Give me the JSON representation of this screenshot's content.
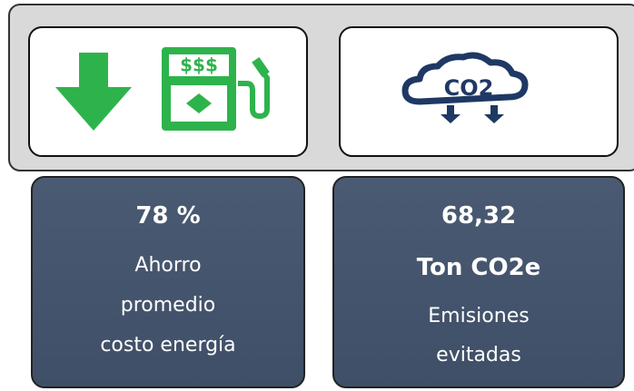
{
  "cards": [
    {
      "icon_text": "$$$",
      "value": "78 %",
      "lines": [
        "Ahorro",
        "promedio",
        "costo energía"
      ]
    },
    {
      "icon_text": "CO2",
      "value": "68,32",
      "lines": [
        "Ton CO2e",
        "Emisiones",
        "evitadas"
      ]
    }
  ]
}
